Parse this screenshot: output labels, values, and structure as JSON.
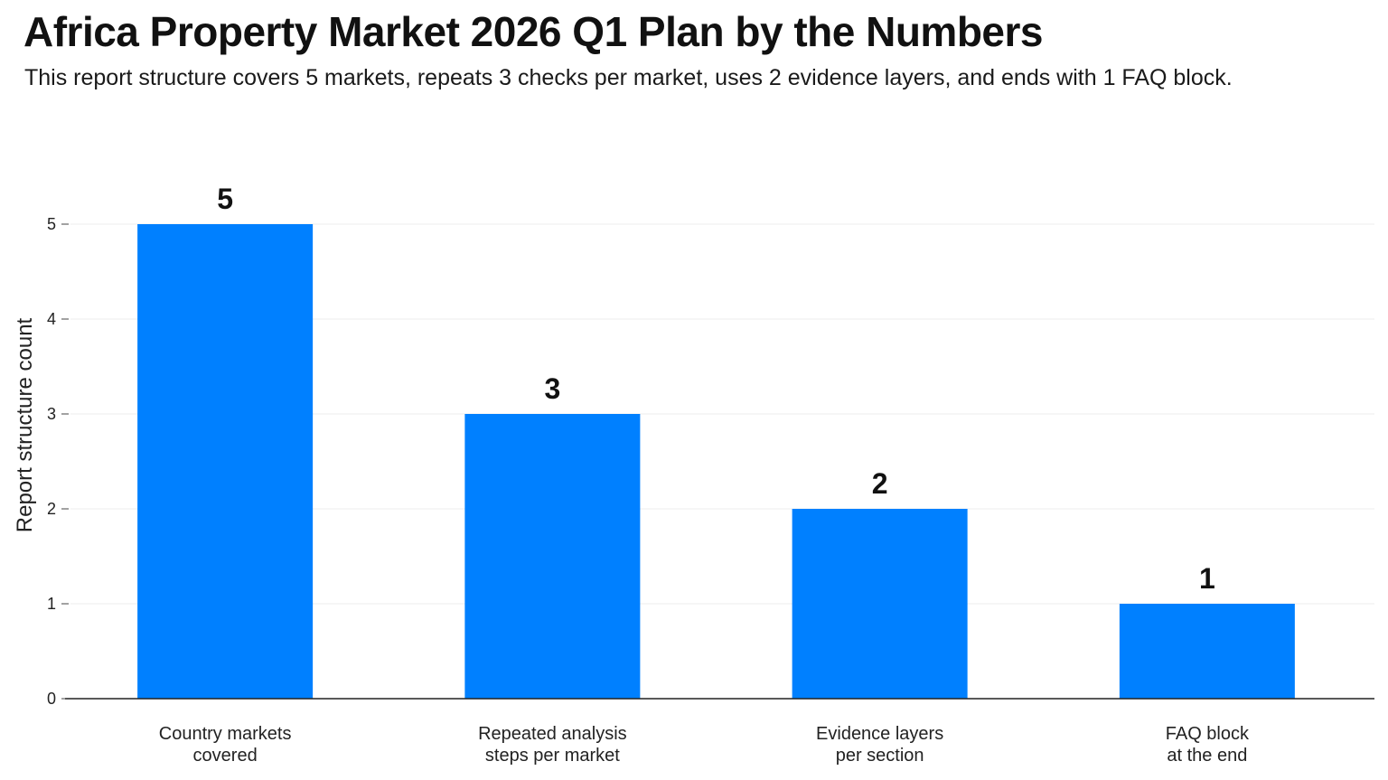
{
  "header": {
    "title": "Africa Property Market 2026 Q1 Plan by the Numbers",
    "subtitle": "This report structure covers 5 markets, repeats 3 checks per market, uses 2 evidence layers, and ends with 1 FAQ block."
  },
  "chart_data": {
    "type": "bar",
    "title": "Africa Property Market 2026 Q1 Plan by the Numbers",
    "subtitle": "This report structure covers 5 markets, repeats 3 checks per market, uses 2 evidence layers, and ends with 1 FAQ block.",
    "categories": [
      [
        "Country markets",
        "covered"
      ],
      [
        "Repeated analysis",
        "steps per market"
      ],
      [
        "Evidence layers",
        "per section"
      ],
      [
        "FAQ block",
        "at the end"
      ]
    ],
    "values": [
      5,
      3,
      2,
      1
    ],
    "value_labels": [
      "5",
      "3",
      "2",
      "1"
    ],
    "xlabel": "",
    "ylabel": "Report structure count",
    "ylim": [
      0,
      5
    ],
    "yticks": [
      0,
      1,
      2,
      3,
      4,
      5
    ],
    "grid": true,
    "legend": "none",
    "bar_color": "#0080FF"
  }
}
